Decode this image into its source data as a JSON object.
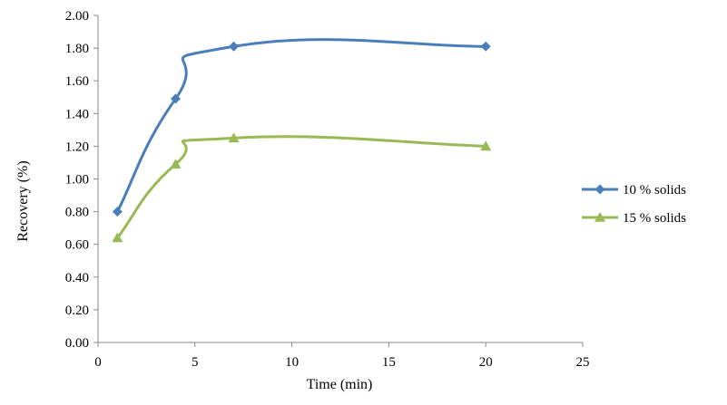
{
  "chart_data": {
    "type": "line",
    "title": "",
    "xlabel": "Time (min)",
    "ylabel": "Recovery (%)",
    "xlim": [
      0,
      25
    ],
    "ylim": [
      0,
      2
    ],
    "x_ticks": [
      "0",
      "5",
      "10",
      "15",
      "20",
      "25"
    ],
    "y_ticks": [
      "0.00",
      "0.20",
      "0.40",
      "0.60",
      "0.80",
      "1.00",
      "1.20",
      "1.40",
      "1.60",
      "1.80",
      "2.00"
    ],
    "grid": false,
    "smooth": true,
    "legend_position": "right",
    "series": [
      {
        "name": "10 % solids",
        "marker": "diamond",
        "color": "#4a7ebb",
        "x": [
          1,
          4,
          7,
          20
        ],
        "y": [
          0.8,
          1.49,
          1.81,
          1.81
        ]
      },
      {
        "name": "15 % solids",
        "marker": "triangle",
        "color": "#98b954",
        "x": [
          1,
          4,
          7,
          20
        ],
        "y": [
          0.64,
          1.09,
          1.25,
          1.2
        ]
      }
    ]
  }
}
